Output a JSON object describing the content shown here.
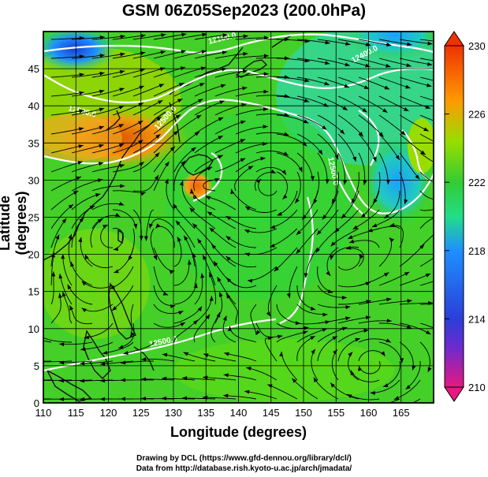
{
  "title": "GSM 06Z05Sep2023 (200.0hPa)",
  "map": {
    "xlabel": "Longitude (degrees)",
    "ylabel": "Latitude  (degrees)",
    "x_ticks": [
      "110",
      "115",
      "120",
      "125",
      "130",
      "135",
      "140",
      "145",
      "150",
      "155",
      "160",
      "165"
    ],
    "y_ticks": [
      "0",
      "5",
      "10",
      "15",
      "20",
      "25",
      "30",
      "35",
      "40",
      "45"
    ],
    "lon_range": [
      110,
      170
    ],
    "lat_range": [
      0,
      50
    ],
    "grid": true,
    "contour_labels": [
      "12100.0",
      "12400.0",
      "12500.0",
      "12500.0",
      "12500.0",
      "12500.0"
    ]
  },
  "colorbar": {
    "ticks": [
      "230",
      "226",
      "222",
      "218",
      "214",
      "210"
    ],
    "range": [
      210,
      230
    ],
    "colors": [
      "#e61980",
      "#3333cc",
      "#1e90ff",
      "#22dd88",
      "#33cc33",
      "#99dd00",
      "#ff9900",
      "#ee3300"
    ]
  },
  "credits": {
    "line1": "Drawing by DCL (https://www.gfd-dennou.org/library/dcl/)",
    "line2": "Data from http://database.rish.kyoto-u.ac.jp/arch/jmadata/"
  }
}
